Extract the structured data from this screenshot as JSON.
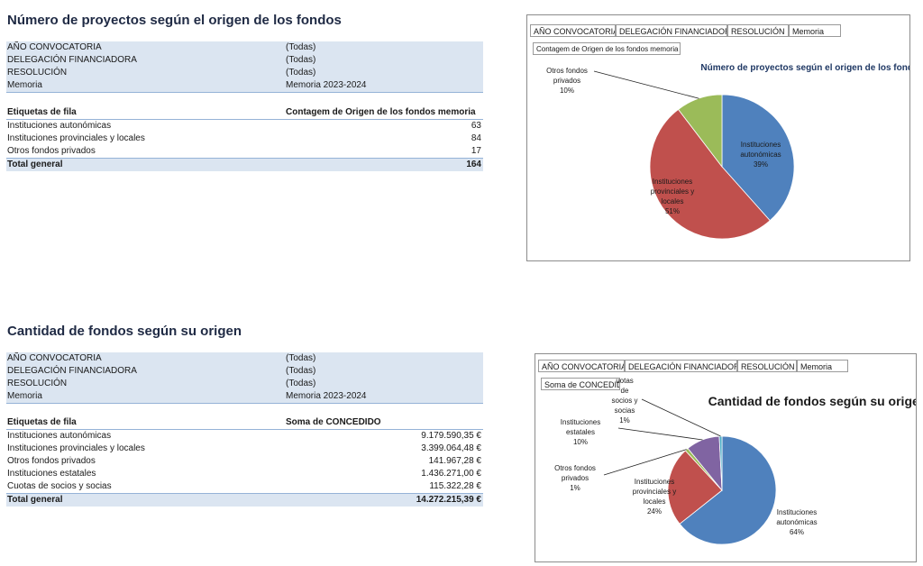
{
  "section1": {
    "title": "Número de proyectos según el origen de los fondos",
    "filters": [
      {
        "label": "AÑO CONVOCATORIA",
        "value": "(Todas)"
      },
      {
        "label": "DELEGACIÓN FINANCIADORA",
        "value": "(Todas)"
      },
      {
        "label": "RESOLUCIÓN",
        "value": "(Todas)"
      },
      {
        "label": "Memoria",
        "value": "Memoria 2023-2024"
      }
    ],
    "table": {
      "col1": "Etiquetas de fila",
      "col2": "Contagem de Origen de los fondos memoria",
      "rows": [
        {
          "label": "Instituciones autonómicas",
          "value": "63"
        },
        {
          "label": "Instituciones provinciales y locales",
          "value": "84"
        },
        {
          "label": "Otros fondos privados",
          "value": "17"
        }
      ],
      "total_label": "Total general",
      "total_value": "164"
    },
    "chart_buttons": [
      "AÑO CONVOCATORIA",
      "DELEGACIÓN FINANCIADORA",
      "RESOLUCIÓN",
      "Memoria"
    ],
    "value_button": "Contagem de Origen de los fondos memoria"
  },
  "section2": {
    "title": "Cantidad de fondos según su origen",
    "filters": [
      {
        "label": "AÑO CONVOCATORIA",
        "value": "(Todas)"
      },
      {
        "label": "DELEGACIÓN FINANCIADORA",
        "value": "(Todas)"
      },
      {
        "label": "RESOLUCIÓN",
        "value": "(Todas)"
      },
      {
        "label": "Memoria",
        "value": "Memoria 2023-2024"
      }
    ],
    "table": {
      "col1": "Etiquetas de fila",
      "col2": "Soma de CONCEDIDO",
      "rows": [
        {
          "label": "Instituciones autonómicas",
          "value": "9.179.590,35 €"
        },
        {
          "label": "Instituciones provinciales y locales",
          "value": "3.399.064,48 €"
        },
        {
          "label": "Otros fondos privados",
          "value": "141.967,28 €"
        },
        {
          "label": "Instituciones estatales",
          "value": "1.436.271,00 €"
        },
        {
          "label": "Cuotas de socios y socias",
          "value": "115.322,28 €"
        }
      ],
      "total_label": "Total general",
      "total_value": "14.272.215,39 €"
    },
    "chart_buttons": [
      "AÑO CONVOCATORIA",
      "DELEGACIÓN FINANCIADORA",
      "RESOLUCIÓN",
      "Memoria"
    ],
    "value_button": "Soma de CONCEDIDO"
  },
  "chart_data": [
    {
      "type": "pie",
      "title": "Número de proyectos según el origen de los fondos",
      "slices": [
        {
          "label_lines": [
            "Instituciones",
            "autonómicas"
          ],
          "value": 63,
          "pct": "39%",
          "color": "#4f81bd"
        },
        {
          "label_lines": [
            "Instituciones",
            "provinciales y",
            "locales"
          ],
          "value": 84,
          "pct": "51%",
          "color": "#c0504d"
        },
        {
          "label_lines": [
            "Otros fondos",
            "privados"
          ],
          "value": 17,
          "pct": "10%",
          "color": "#9bbb59"
        }
      ]
    },
    {
      "type": "pie",
      "title": "Cantidad de fondos según su origen",
      "slices": [
        {
          "label_lines": [
            "Instituciones",
            "autonómicas"
          ],
          "value": 9179590.35,
          "pct": "64%",
          "color": "#4f81bd"
        },
        {
          "label_lines": [
            "Instituciones",
            "provinciales y",
            "locales"
          ],
          "value": 3399064.48,
          "pct": "24%",
          "color": "#c0504d"
        },
        {
          "label_lines": [
            "Otros fondos",
            "privados"
          ],
          "value": 141967.28,
          "pct": "1%",
          "color": "#9bbb59"
        },
        {
          "label_lines": [
            "Instituciones",
            "estatales"
          ],
          "value": 1436271.0,
          "pct": "10%",
          "color": "#8064a2"
        },
        {
          "label_lines": [
            "uotas",
            "de",
            "socios y",
            "socias"
          ],
          "value": 115322.28,
          "pct": "1%",
          "color": "#4bacc6"
        }
      ]
    }
  ]
}
